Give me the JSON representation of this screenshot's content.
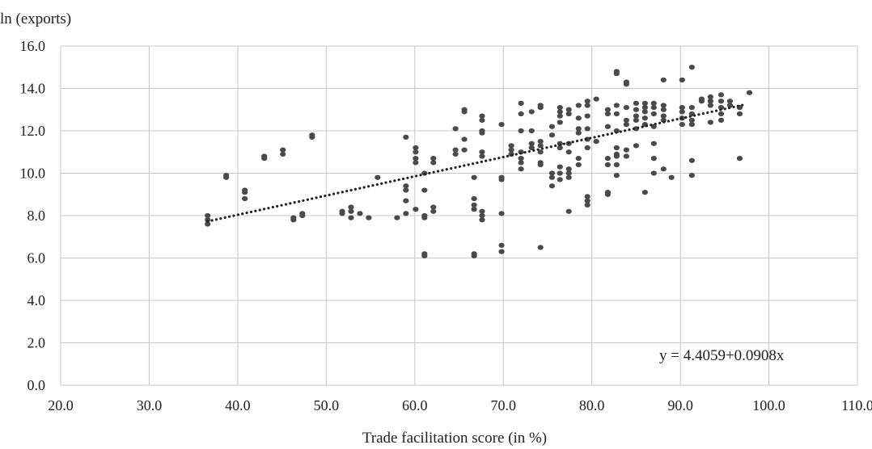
{
  "chart_data": {
    "type": "scatter",
    "ylabel": "ln (exports)",
    "xlabel": "Trade facilitation score (in %)",
    "xlim": [
      20,
      110
    ],
    "ylim": [
      0,
      16
    ],
    "x_ticks": [
      "20.0",
      "30.0",
      "40.0",
      "50.0",
      "60.0",
      "70.0",
      "80.0",
      "90.0",
      "100.0",
      "110.0"
    ],
    "y_ticks": [
      "0.0",
      "2.0",
      "4.0",
      "6.0",
      "8.0",
      "10.0",
      "12.0",
      "14.0",
      "16.0"
    ],
    "grid": true,
    "trendline": {
      "intercept": 4.4059,
      "slope": 0.0908,
      "x_range": [
        36.6,
        97.0
      ],
      "style": "dotted"
    },
    "equation_label": "y = 4.4059+0.0908x",
    "colors": {
      "points": "#4a4a4a",
      "grid": "#c8c8c8",
      "trend": "#222222"
    },
    "series": [
      {
        "points": [
          [
            36.6,
            7.6
          ],
          [
            36.6,
            7.8
          ],
          [
            36.6,
            8.0
          ],
          [
            38.7,
            9.8
          ],
          [
            38.7,
            9.9
          ],
          [
            40.8,
            8.8
          ],
          [
            40.8,
            9.1
          ],
          [
            40.8,
            9.2
          ],
          [
            43.0,
            10.7
          ],
          [
            43.0,
            10.8
          ],
          [
            45.1,
            10.9
          ],
          [
            45.1,
            11.1
          ],
          [
            46.3,
            7.8
          ],
          [
            46.3,
            7.9
          ],
          [
            47.3,
            8.0
          ],
          [
            47.3,
            8.1
          ],
          [
            48.4,
            11.7
          ],
          [
            48.4,
            11.8
          ],
          [
            51.8,
            8.1
          ],
          [
            51.8,
            8.2
          ],
          [
            52.8,
            7.9
          ],
          [
            52.8,
            8.2
          ],
          [
            52.8,
            8.4
          ],
          [
            53.8,
            8.1
          ],
          [
            54.8,
            7.9
          ],
          [
            55.8,
            9.8
          ],
          [
            58.0,
            7.9
          ],
          [
            59.0,
            8.1
          ],
          [
            59.0,
            8.7
          ],
          [
            59.0,
            9.2
          ],
          [
            59.0,
            9.4
          ],
          [
            59.0,
            11.7
          ],
          [
            60.1,
            8.3
          ],
          [
            60.1,
            10.5
          ],
          [
            60.1,
            10.7
          ],
          [
            60.1,
            11.0
          ],
          [
            60.1,
            11.2
          ],
          [
            61.1,
            6.1
          ],
          [
            61.1,
            6.2
          ],
          [
            61.1,
            7.9
          ],
          [
            61.1,
            8.0
          ],
          [
            61.1,
            9.2
          ],
          [
            61.1,
            10.0
          ],
          [
            62.1,
            8.2
          ],
          [
            62.1,
            8.4
          ],
          [
            62.1,
            10.5
          ],
          [
            62.1,
            10.7
          ],
          [
            64.6,
            10.9
          ],
          [
            64.6,
            11.1
          ],
          [
            64.6,
            12.1
          ],
          [
            65.6,
            11.1
          ],
          [
            65.6,
            11.6
          ],
          [
            65.6,
            12.9
          ],
          [
            65.6,
            13.0
          ],
          [
            66.7,
            6.1
          ],
          [
            66.7,
            6.2
          ],
          [
            66.7,
            8.3
          ],
          [
            66.7,
            8.5
          ],
          [
            66.7,
            8.8
          ],
          [
            66.7,
            9.8
          ],
          [
            67.6,
            7.8
          ],
          [
            67.6,
            8.0
          ],
          [
            67.6,
            8.2
          ],
          [
            67.6,
            10.8
          ],
          [
            67.6,
            11.0
          ],
          [
            67.6,
            11.9
          ],
          [
            67.6,
            12.0
          ],
          [
            67.6,
            12.5
          ],
          [
            67.6,
            12.7
          ],
          [
            69.8,
            6.3
          ],
          [
            69.8,
            6.6
          ],
          [
            69.8,
            8.1
          ],
          [
            69.8,
            9.7
          ],
          [
            69.8,
            9.8
          ],
          [
            69.8,
            12.3
          ],
          [
            70.9,
            10.9
          ],
          [
            70.9,
            11.1
          ],
          [
            70.9,
            11.3
          ],
          [
            72.0,
            10.2
          ],
          [
            72.0,
            10.5
          ],
          [
            72.0,
            10.7
          ],
          [
            72.0,
            11.0
          ],
          [
            72.0,
            12.0
          ],
          [
            72.0,
            12.8
          ],
          [
            72.0,
            13.3
          ],
          [
            73.2,
            11.2
          ],
          [
            73.2,
            11.4
          ],
          [
            73.2,
            12.0
          ],
          [
            73.2,
            12.9
          ],
          [
            74.2,
            6.5
          ],
          [
            74.2,
            10.4
          ],
          [
            74.2,
            10.5
          ],
          [
            74.2,
            11.0
          ],
          [
            74.2,
            11.3
          ],
          [
            74.2,
            11.5
          ],
          [
            74.2,
            13.1
          ],
          [
            74.2,
            13.2
          ],
          [
            75.5,
            9.4
          ],
          [
            75.5,
            9.8
          ],
          [
            75.5,
            10.0
          ],
          [
            75.5,
            11.8
          ],
          [
            75.5,
            12.2
          ],
          [
            76.4,
            9.7
          ],
          [
            76.4,
            10.0
          ],
          [
            76.4,
            10.3
          ],
          [
            76.4,
            11.2
          ],
          [
            76.4,
            11.4
          ],
          [
            76.4,
            12.4
          ],
          [
            76.4,
            12.7
          ],
          [
            76.4,
            12.9
          ],
          [
            76.4,
            13.1
          ],
          [
            77.4,
            8.2
          ],
          [
            77.4,
            9.8
          ],
          [
            77.4,
            10.0
          ],
          [
            77.4,
            10.2
          ],
          [
            77.4,
            11.0
          ],
          [
            77.4,
            11.4
          ],
          [
            77.4,
            12.8
          ],
          [
            77.4,
            13.0
          ],
          [
            78.5,
            10.4
          ],
          [
            78.5,
            10.7
          ],
          [
            78.5,
            11.9
          ],
          [
            78.5,
            12.1
          ],
          [
            78.5,
            12.6
          ],
          [
            78.5,
            13.2
          ],
          [
            79.5,
            8.5
          ],
          [
            79.5,
            8.7
          ],
          [
            79.5,
            8.9
          ],
          [
            79.5,
            11.2
          ],
          [
            79.5,
            11.6
          ],
          [
            79.5,
            12.1
          ],
          [
            79.5,
            12.7
          ],
          [
            79.5,
            13.2
          ],
          [
            79.5,
            13.4
          ],
          [
            80.5,
            11.5
          ],
          [
            80.5,
            13.5
          ],
          [
            81.8,
            9.0
          ],
          [
            81.8,
            9.1
          ],
          [
            81.8,
            10.4
          ],
          [
            81.8,
            10.7
          ],
          [
            81.8,
            12.2
          ],
          [
            81.8,
            12.8
          ],
          [
            81.8,
            13.0
          ],
          [
            82.8,
            9.9
          ],
          [
            82.8,
            10.4
          ],
          [
            82.8,
            10.8
          ],
          [
            82.8,
            10.9
          ],
          [
            82.8,
            11.2
          ],
          [
            82.8,
            12.0
          ],
          [
            82.8,
            12.8
          ],
          [
            82.8,
            13.2
          ],
          [
            82.8,
            14.7
          ],
          [
            82.8,
            14.8
          ],
          [
            83.9,
            10.8
          ],
          [
            83.9,
            11.1
          ],
          [
            83.9,
            12.3
          ],
          [
            83.9,
            12.5
          ],
          [
            83.9,
            13.1
          ],
          [
            83.9,
            14.2
          ],
          [
            83.9,
            14.3
          ],
          [
            85.0,
            11.3
          ],
          [
            85.0,
            12.1
          ],
          [
            85.0,
            12.5
          ],
          [
            85.0,
            12.7
          ],
          [
            85.0,
            13.0
          ],
          [
            85.0,
            13.3
          ],
          [
            86.0,
            9.1
          ],
          [
            86.0,
            12.3
          ],
          [
            86.0,
            12.6
          ],
          [
            86.0,
            12.9
          ],
          [
            86.0,
            13.1
          ],
          [
            86.0,
            13.3
          ],
          [
            87.0,
            10.0
          ],
          [
            87.0,
            10.7
          ],
          [
            87.0,
            11.4
          ],
          [
            87.0,
            12.2
          ],
          [
            87.0,
            12.8
          ],
          [
            87.0,
            13.1
          ],
          [
            87.0,
            13.3
          ],
          [
            88.1,
            10.2
          ],
          [
            88.1,
            12.5
          ],
          [
            88.1,
            12.7
          ],
          [
            88.1,
            13.0
          ],
          [
            88.1,
            13.2
          ],
          [
            88.1,
            14.4
          ],
          [
            89.0,
            9.8
          ],
          [
            90.2,
            12.3
          ],
          [
            90.2,
            12.6
          ],
          [
            90.2,
            12.9
          ],
          [
            90.2,
            13.1
          ],
          [
            90.2,
            14.4
          ],
          [
            91.3,
            9.9
          ],
          [
            91.3,
            10.6
          ],
          [
            91.3,
            12.3
          ],
          [
            91.3,
            12.5
          ],
          [
            91.3,
            12.8
          ],
          [
            91.3,
            13.1
          ],
          [
            91.3,
            15.0
          ],
          [
            92.4,
            13.4
          ],
          [
            92.4,
            13.5
          ],
          [
            93.4,
            12.4
          ],
          [
            93.4,
            13.2
          ],
          [
            93.4,
            13.4
          ],
          [
            93.4,
            13.6
          ],
          [
            94.6,
            12.5
          ],
          [
            94.6,
            12.8
          ],
          [
            94.6,
            13.1
          ],
          [
            94.6,
            13.4
          ],
          [
            94.6,
            13.7
          ],
          [
            95.6,
            13.2
          ],
          [
            95.6,
            13.4
          ],
          [
            96.7,
            10.7
          ],
          [
            96.7,
            12.8
          ],
          [
            96.7,
            13.1
          ],
          [
            97.8,
            13.8
          ]
        ]
      }
    ]
  }
}
